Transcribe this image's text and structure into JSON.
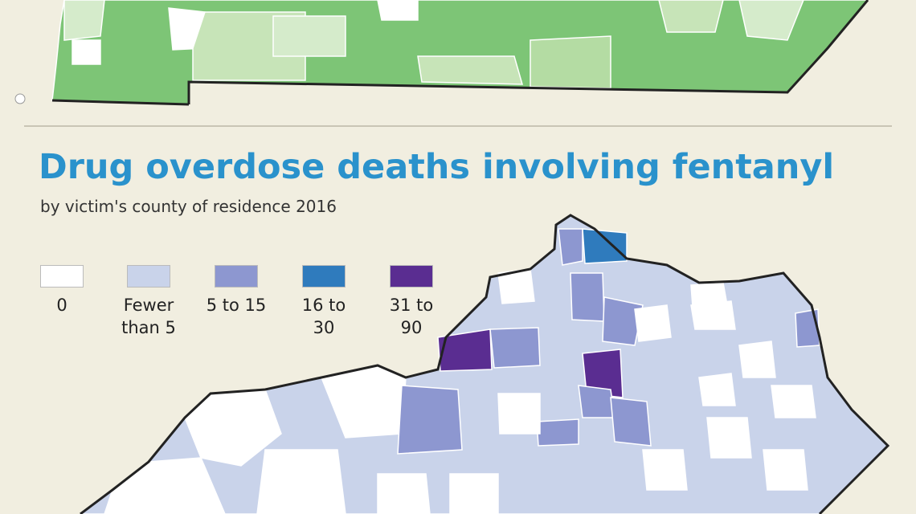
{
  "title": "Drug overdose deaths involving fentanyl",
  "subtitle": "by victim's county of residence 2016",
  "legend": [
    {
      "label": "0",
      "color": "#ffffff"
    },
    {
      "label": "Fewer than 5",
      "color": "#c9d3ea"
    },
    {
      "label": "5 to 15",
      "color": "#8d97d0"
    },
    {
      "label": "16 to 30",
      "color": "#2f7bbd"
    },
    {
      "label": "31 to 90",
      "color": "#5a2d91"
    }
  ]
}
